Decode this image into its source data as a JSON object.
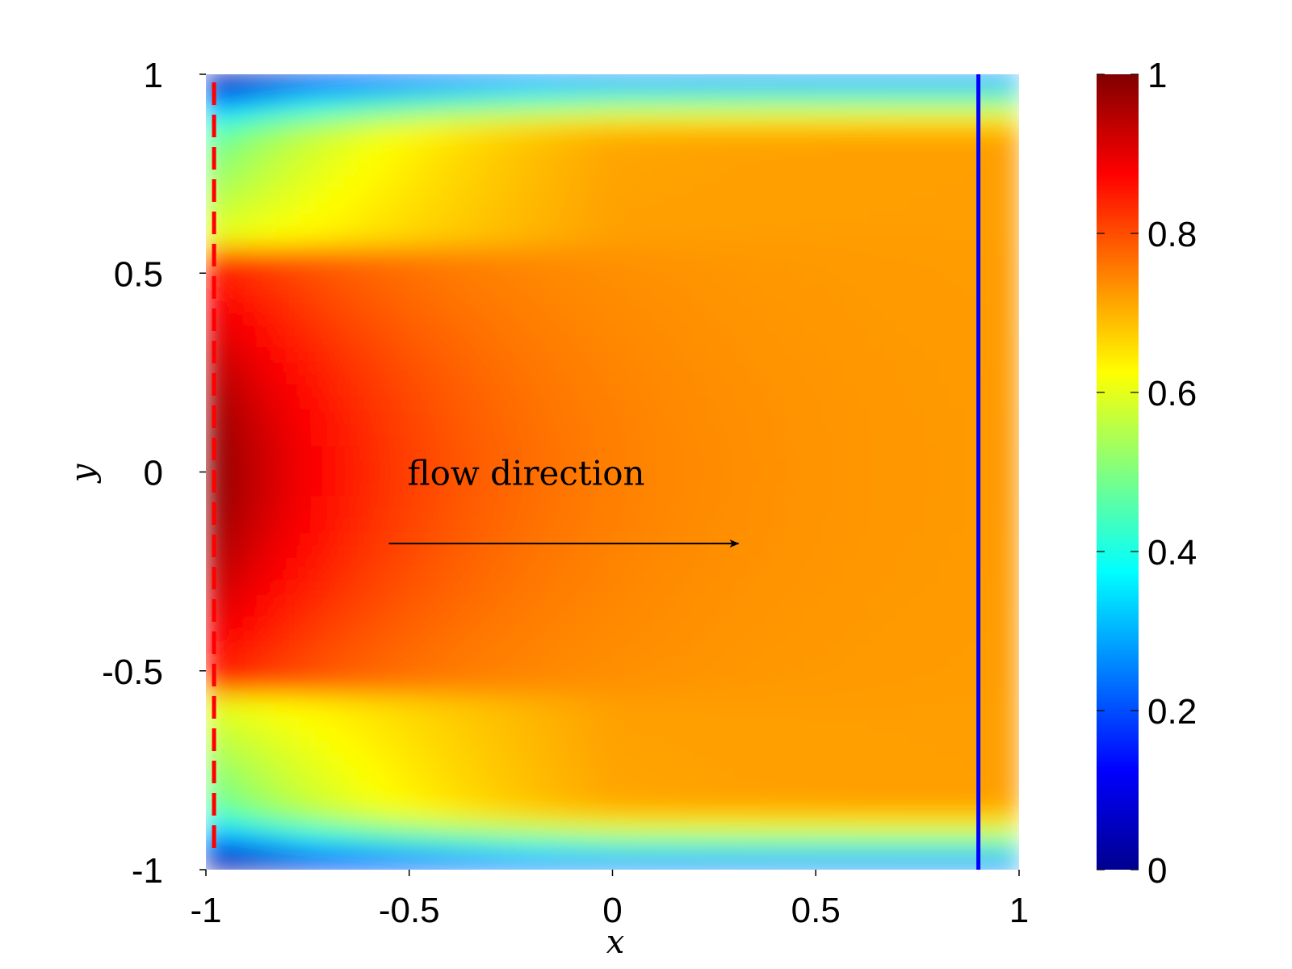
{
  "chart_data": {
    "type": "heatmap",
    "xlabel": "x",
    "ylabel": "y",
    "xlim": [
      -1,
      1
    ],
    "ylim": [
      -1,
      1
    ],
    "x_ticks": [
      {
        "value": -1,
        "label": "-1"
      },
      {
        "value": -0.5,
        "label": "-0.5"
      },
      {
        "value": 0,
        "label": "0"
      },
      {
        "value": 0.5,
        "label": "0.5"
      },
      {
        "value": 1,
        "label": "1"
      }
    ],
    "y_ticks": [
      {
        "value": 1,
        "label": "1"
      },
      {
        "value": 0.5,
        "label": "0.5"
      },
      {
        "value": 0,
        "label": "0"
      },
      {
        "value": -0.5,
        "label": "-0.5"
      },
      {
        "value": -1,
        "label": "-1"
      }
    ],
    "colorbar": {
      "colormap": "jet",
      "range": [
        0,
        1
      ],
      "ticks": [
        {
          "value": 0,
          "label": "0"
        },
        {
          "value": 0.2,
          "label": "0.2"
        },
        {
          "value": 0.4,
          "label": "0.4"
        },
        {
          "value": 0.6,
          "label": "0.6"
        },
        {
          "value": 0.8,
          "label": "0.8"
        },
        {
          "value": 1,
          "label": "1"
        }
      ]
    },
    "field_description": "value approx 1 at left-center (x=-1, y=0), decaying to ~0.72 downstream; near 0 at walls y=±1",
    "vertical_lines": [
      {
        "x": -0.98,
        "style": "dashed",
        "color": "#ff0000"
      },
      {
        "x": 0.9,
        "style": "solid",
        "color": "#0000ff"
      }
    ],
    "annotation": {
      "text": "flow direction",
      "arrow_from": [
        -0.55,
        -0.18
      ],
      "arrow_to": [
        0.31,
        -0.18
      ]
    }
  }
}
